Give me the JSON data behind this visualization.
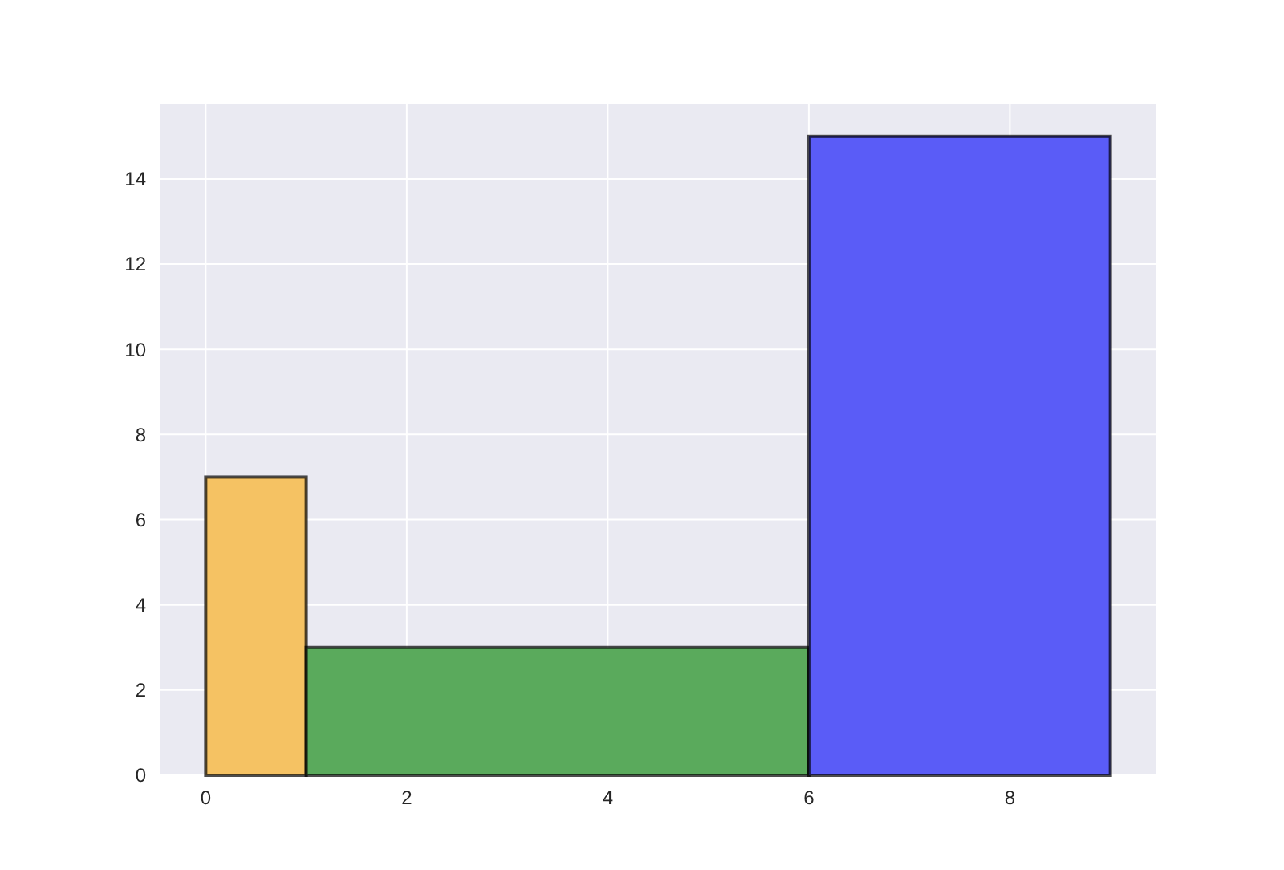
{
  "chart_data": {
    "type": "histogram",
    "bins": [
      0,
      1,
      6,
      9
    ],
    "values": [
      7,
      3,
      15
    ],
    "colors": [
      "#f5c263",
      "#5aaa5c",
      "#5a5cf7"
    ],
    "xlim": [
      -0.45,
      9.45
    ],
    "xticks": [
      0,
      2,
      4,
      6,
      8
    ],
    "ylim": [
      0,
      15.75
    ],
    "yticks": [
      0,
      2,
      4,
      6,
      8,
      10,
      12,
      14
    ],
    "grid": true
  }
}
